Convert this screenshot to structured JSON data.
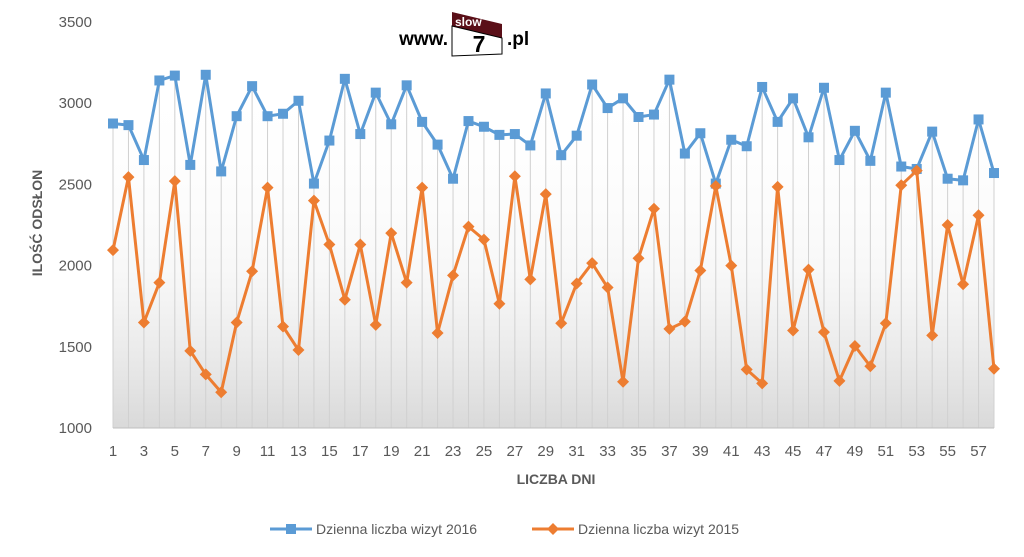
{
  "logo": {
    "prefix": "www.",
    "badge_top": "slow",
    "badge_num": "7",
    "suffix": ".pl"
  },
  "chart_data": {
    "type": "line",
    "title": "",
    "xlabel": "LICZBA DNI",
    "ylabel": "ILOŚĆ ODSŁON",
    "ylim": [
      1000,
      3500
    ],
    "yticks": [
      1000,
      1500,
      2000,
      2500,
      3000,
      3500
    ],
    "xlim": [
      1,
      58
    ],
    "xticks": [
      1,
      3,
      5,
      7,
      9,
      11,
      13,
      15,
      17,
      19,
      21,
      23,
      25,
      27,
      29,
      31,
      33,
      35,
      37,
      39,
      41,
      43,
      45,
      47,
      49,
      51,
      53,
      55,
      57
    ],
    "legend_position": "bottom",
    "grid": "vertical drop lines with shaded area",
    "x": [
      1,
      2,
      3,
      4,
      5,
      6,
      7,
      8,
      9,
      10,
      11,
      12,
      13,
      14,
      15,
      16,
      17,
      18,
      19,
      20,
      21,
      22,
      23,
      24,
      25,
      26,
      27,
      28,
      29,
      30,
      31,
      32,
      33,
      34,
      35,
      36,
      37,
      38,
      39,
      40,
      41,
      42,
      43,
      44,
      45,
      46,
      47,
      48,
      49,
      50,
      51,
      52,
      53,
      54,
      55,
      56,
      57,
      58
    ],
    "series": [
      {
        "name": "Dzienna liczba wizyt 2016",
        "color": "#5B9BD5",
        "marker": "square",
        "values": [
          2875,
          2865,
          2650,
          3140,
          3170,
          2620,
          3175,
          2580,
          2920,
          3105,
          2920,
          2935,
          3015,
          2505,
          2770,
          3150,
          2810,
          3065,
          2870,
          3110,
          2885,
          2745,
          2535,
          2890,
          2855,
          2805,
          2810,
          2740,
          3060,
          2680,
          2800,
          3115,
          2970,
          3030,
          2915,
          2930,
          3145,
          2690,
          2815,
          2505,
          2775,
          2735,
          3100,
          2885,
          3030,
          2790,
          3095,
          2650,
          2830,
          2645,
          3065,
          2610,
          2595,
          2825,
          2535,
          2525,
          2900,
          2570
        ]
      },
      {
        "name": "Dzienna liczba wizyt 2015",
        "color": "#ED7D31",
        "marker": "diamond",
        "values": [
          2095,
          2545,
          1650,
          1895,
          2520,
          1475,
          1330,
          1220,
          1650,
          1965,
          2480,
          1625,
          1480,
          2400,
          2130,
          1790,
          2130,
          1635,
          2200,
          1895,
          2480,
          1585,
          1940,
          2240,
          2160,
          1765,
          2550,
          1915,
          2440,
          1645,
          1890,
          2015,
          1865,
          1285,
          2045,
          2350,
          1610,
          1655,
          1970,
          2490,
          2000,
          1360,
          1275,
          2485,
          1600,
          1975,
          1590,
          1290,
          1505,
          1380,
          1645,
          2495,
          2585,
          1570,
          2250,
          1885,
          2310,
          1365
        ]
      }
    ]
  }
}
